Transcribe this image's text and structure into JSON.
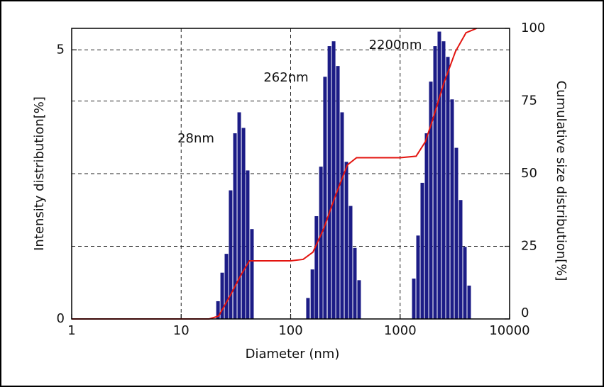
{
  "chart_data": {
    "type": "bar",
    "xlabel": "Diameter (nm)",
    "ylabel": "Intensity distribution[%]",
    "y2label": "Cumulative size distribution[%]",
    "xscale": "log",
    "xlim": [
      1,
      10000
    ],
    "xticks": [
      1,
      10,
      100,
      1000,
      10000
    ],
    "ylim": [
      0,
      5.4
    ],
    "yticks": [
      0,
      5
    ],
    "y2lim": [
      0,
      100
    ],
    "y2ticks": [
      0,
      25,
      50,
      75,
      100
    ],
    "grid": true,
    "annotations": [
      "28nm",
      "262nm",
      "2200nm"
    ],
    "series": [
      {
        "type": "bar",
        "color": "#1c1c86",
        "x": [
          21.7,
          23.7,
          25.9,
          28.3,
          31.0,
          33.9,
          37.1,
          40.5,
          44.3,
          144,
          158,
          172,
          189,
          206,
          226,
          247,
          270,
          295,
          323,
          353,
          386,
          422,
          1333,
          1458,
          1594,
          1744,
          1907,
          2086,
          2281,
          2495,
          2729,
          2985,
          3264,
          3570,
          3905,
          4271
        ],
        "values": [
          0.33,
          0.86,
          1.21,
          2.39,
          3.45,
          3.84,
          3.55,
          2.76,
          1.67,
          0.39,
          0.92,
          1.91,
          2.83,
          4.5,
          5.07,
          5.16,
          4.7,
          3.84,
          2.92,
          2.1,
          1.32,
          0.72,
          0.75,
          1.55,
          2.53,
          3.45,
          4.41,
          5.07,
          5.34,
          5.16,
          4.87,
          4.08,
          3.18,
          2.21,
          1.34,
          0.62
        ]
      },
      {
        "type": "line",
        "axis": "y2",
        "color": "#e3140f",
        "x": [
          1,
          18,
          22,
          28,
          35,
          42,
          100,
          130,
          160,
          200,
          260,
          330,
          400,
          1000,
          1400,
          1700,
          2000,
          2500,
          3200,
          4000,
          5000
        ],
        "values": [
          0,
          0,
          1,
          8,
          15,
          20,
          20,
          20.5,
          23,
          31,
          43,
          53,
          55.5,
          55.5,
          56,
          61,
          69,
          81,
          92,
          98.5,
          100
        ]
      }
    ]
  }
}
